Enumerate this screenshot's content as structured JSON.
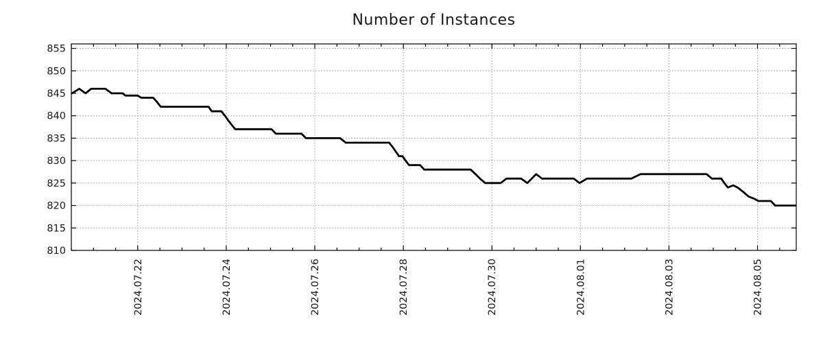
{
  "chart_data": {
    "type": "line",
    "title": "Number of Instances",
    "xlabel": "",
    "ylabel": "",
    "xlim_days": [
      -1.5,
      14.875
    ],
    "ylim": [
      810,
      856
    ],
    "y_ticks": [
      810,
      815,
      820,
      825,
      830,
      835,
      840,
      845,
      850,
      855
    ],
    "x_major_ticks": [
      {
        "day": 0,
        "label": "2024.07.22"
      },
      {
        "day": 2,
        "label": "2024.07.24"
      },
      {
        "day": 4,
        "label": "2024.07.26"
      },
      {
        "day": 6,
        "label": "2024.07.28"
      },
      {
        "day": 8,
        "label": "2024.07.30"
      },
      {
        "day": 10,
        "label": "2024.08.01"
      },
      {
        "day": 12,
        "label": "2024.08.03"
      },
      {
        "day": 14,
        "label": "2024.08.05"
      }
    ],
    "x_minor_step_days": 0.5,
    "grid": "dotted",
    "grid_color": "#b0b0b0",
    "axis_color": "#000000",
    "line_color": "#000000",
    "line_width": 2.8,
    "legend": "none",
    "series": [
      {
        "name": "instances",
        "points_day_value": [
          [
            -1.5,
            844.9
          ],
          [
            -1.32,
            846
          ],
          [
            -1.18,
            845
          ],
          [
            -1.05,
            846
          ],
          [
            -0.73,
            846
          ],
          [
            -0.59,
            845
          ],
          [
            -0.34,
            845
          ],
          [
            -0.28,
            844.5
          ],
          [
            0.0,
            844.5
          ],
          [
            0.08,
            844
          ],
          [
            0.35,
            844
          ],
          [
            0.44,
            843
          ],
          [
            0.52,
            842
          ],
          [
            1.6,
            842
          ],
          [
            1.67,
            841
          ],
          [
            1.89,
            841
          ],
          [
            1.97,
            840
          ],
          [
            2.04,
            839
          ],
          [
            2.12,
            838
          ],
          [
            2.2,
            837
          ],
          [
            3.02,
            837
          ],
          [
            3.12,
            836
          ],
          [
            3.7,
            836
          ],
          [
            3.8,
            835
          ],
          [
            4.57,
            835
          ],
          [
            4.7,
            834
          ],
          [
            5.68,
            834
          ],
          [
            5.76,
            833
          ],
          [
            5.83,
            832
          ],
          [
            5.9,
            831
          ],
          [
            5.98,
            831
          ],
          [
            6.05,
            830
          ],
          [
            6.13,
            829
          ],
          [
            6.38,
            829
          ],
          [
            6.47,
            828
          ],
          [
            7.52,
            828
          ],
          [
            7.63,
            827
          ],
          [
            7.73,
            826
          ],
          [
            7.85,
            825
          ],
          [
            8.2,
            825
          ],
          [
            8.33,
            826
          ],
          [
            8.66,
            826
          ],
          [
            8.8,
            825
          ],
          [
            9.0,
            827
          ],
          [
            9.13,
            826
          ],
          [
            9.85,
            826
          ],
          [
            9.98,
            825
          ],
          [
            10.15,
            826
          ],
          [
            11.15,
            826
          ],
          [
            11.36,
            827
          ],
          [
            12.85,
            827
          ],
          [
            12.97,
            826
          ],
          [
            13.18,
            826
          ],
          [
            13.25,
            825
          ],
          [
            13.33,
            824
          ],
          [
            13.45,
            824.5
          ],
          [
            13.55,
            824
          ],
          [
            13.68,
            823
          ],
          [
            13.8,
            822
          ],
          [
            13.93,
            821.5
          ],
          [
            14.02,
            821
          ],
          [
            14.3,
            821
          ],
          [
            14.4,
            820
          ],
          [
            14.875,
            820
          ]
        ]
      }
    ]
  }
}
